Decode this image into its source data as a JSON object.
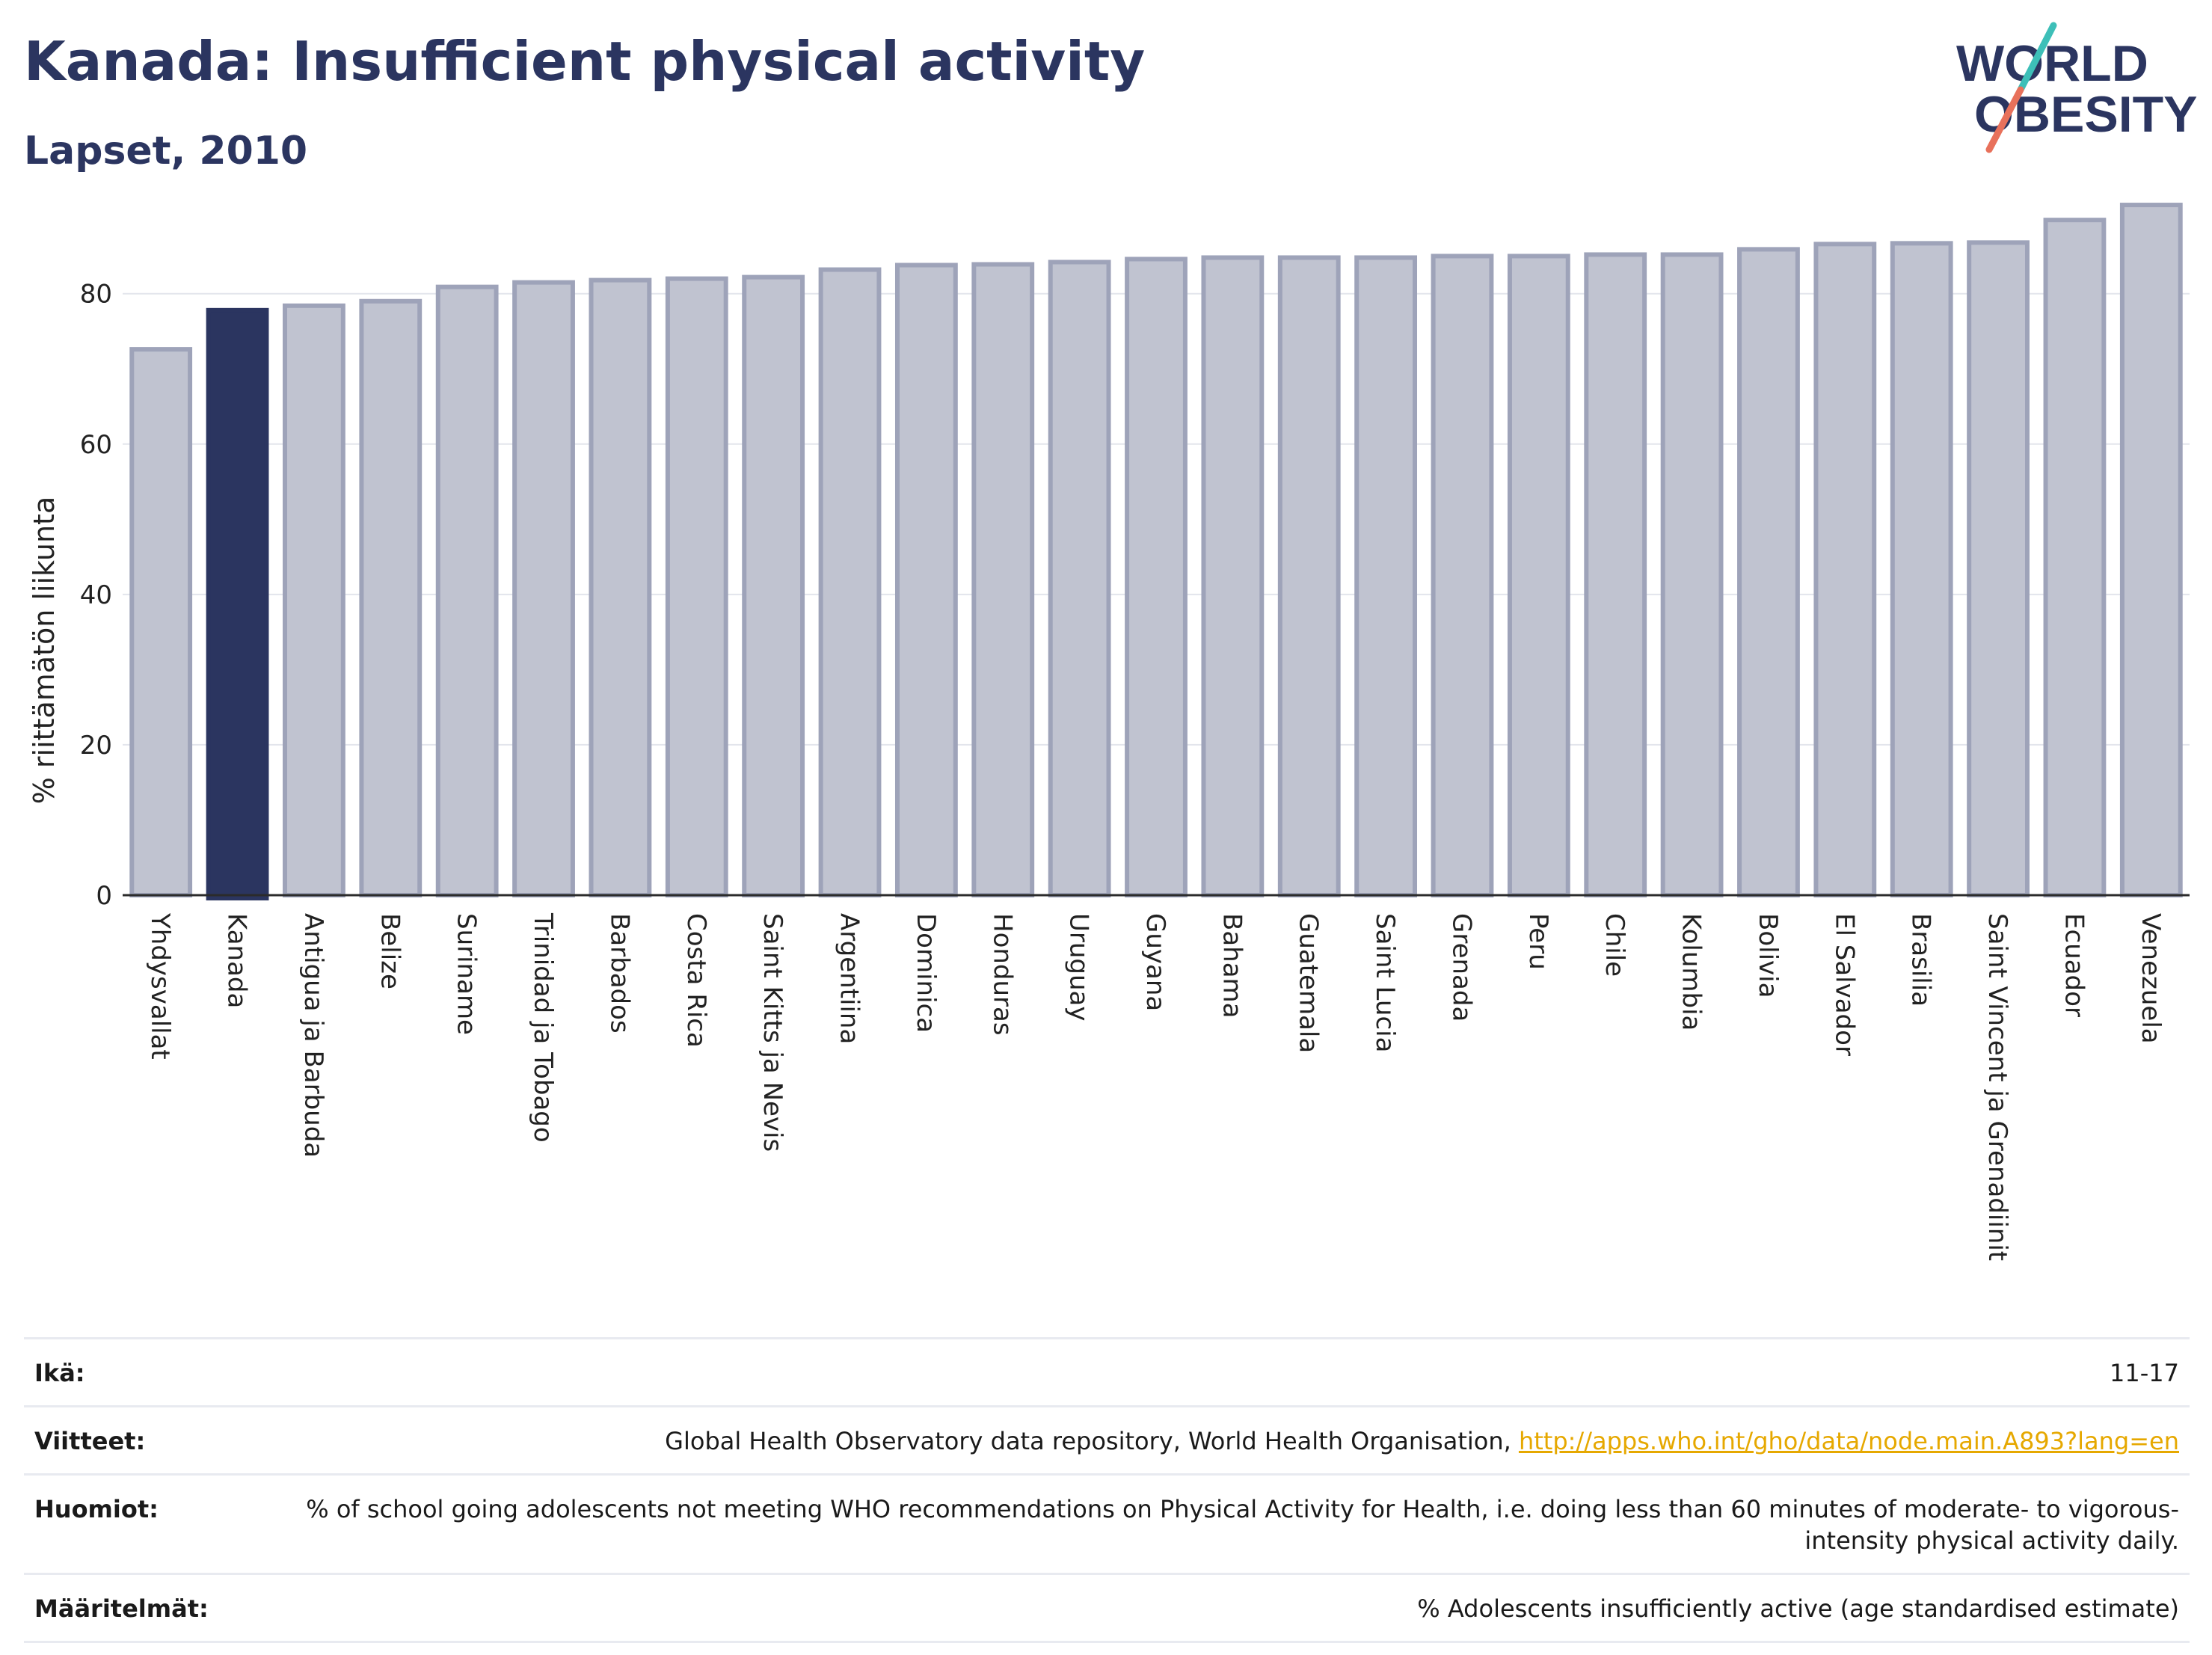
{
  "header": {
    "title": "Kanada: Insufficient physical activity",
    "subtitle": "Lapset, 2010"
  },
  "logo": {
    "line1": "WORLD",
    "line2": "OBESITY",
    "accent_colors": [
      "#3dbfb8",
      "#e8715b"
    ],
    "text_color": "#2b3560"
  },
  "chart_data": {
    "type": "bar",
    "title": "Kanada: Insufficient physical activity",
    "subtitle": "Lapset, 2010",
    "ylabel": "% riittämätön liikunta",
    "xlabel": "",
    "ylim": [
      0,
      93
    ],
    "yticks": [
      0,
      20,
      40,
      60,
      80
    ],
    "grid": true,
    "highlight": "Kanada",
    "highlight_color": "#2b3560",
    "bar_color": "#c0c3d0",
    "bar_edge_color": "#9ea3b9",
    "categories": [
      "Yhdysvallat",
      "Kanada",
      "Antigua ja Barbuda",
      "Belize",
      "Suriname",
      "Trinidad ja Tobago",
      "Barbados",
      "Costa Rica",
      "Saint Kitts ja Nevis",
      "Argentiina",
      "Dominica",
      "Honduras",
      "Uruguay",
      "Guyana",
      "Bahama",
      "Guatemala",
      "Saint Lucia",
      "Grenada",
      "Peru",
      "Chile",
      "Kolumbia",
      "Bolivia",
      "El Salvador",
      "Brasilia",
      "Saint Vincent ja Grenadiinit",
      "Ecuador",
      "Venezuela"
    ],
    "values": [
      72.6,
      77.8,
      78.4,
      79.0,
      80.9,
      81.5,
      81.8,
      82.0,
      82.2,
      83.2,
      83.8,
      83.9,
      84.2,
      84.6,
      84.8,
      84.8,
      84.8,
      85.0,
      85.0,
      85.2,
      85.2,
      85.9,
      86.6,
      86.7,
      86.8,
      89.8,
      91.8
    ]
  },
  "meta": {
    "rows": [
      {
        "label": "Ikä:",
        "value": "11-17"
      },
      {
        "label": "Viitteet:",
        "value": "Global Health Observatory data repository, World Health Organisation, ",
        "link": "http://apps.who.int/gho/data/node.main.A893?lang=en"
      },
      {
        "label": "Huomiot:",
        "value": "% of school going adolescents not meeting WHO recommendations on Physical Activity for Health, i.e. doing less than 60 minutes of moderate- to vigorous-intensity physical activity daily."
      },
      {
        "label": "Määritelmät:",
        "value": "% Adolescents insufficiently active (age standardised estimate)"
      }
    ]
  }
}
